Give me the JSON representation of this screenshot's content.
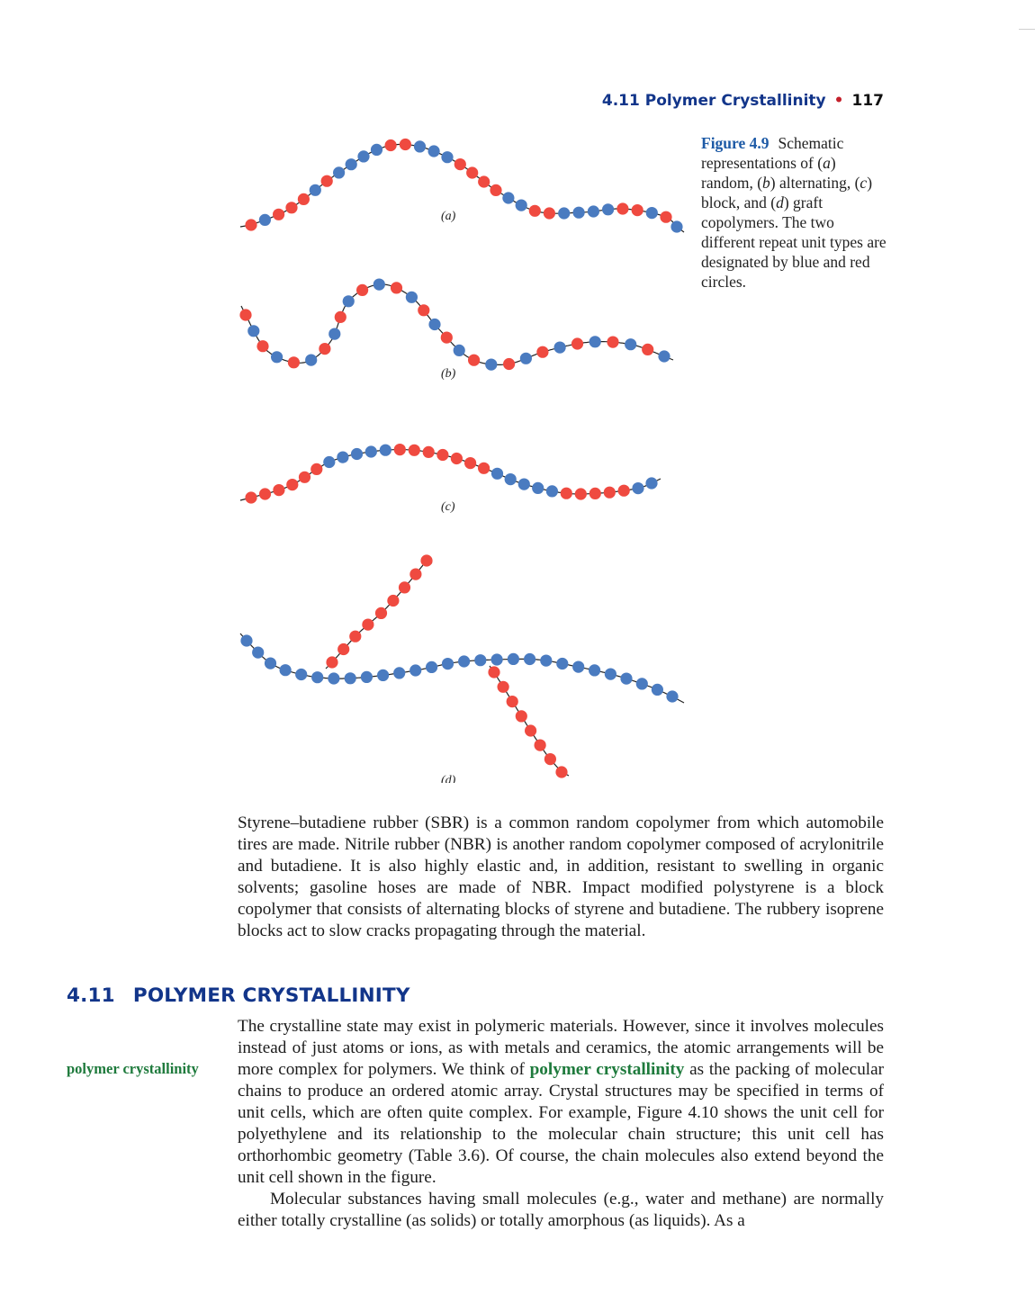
{
  "running_head": {
    "title": "4.11 Polymer Crystallinity",
    "bullet": "•",
    "page_number": "117"
  },
  "figure": {
    "label": "Figure 4.9",
    "caption_parts": [
      "Schematic representations of (",
      "a",
      ") random, (",
      "b",
      ") alternating, (",
      "c",
      ") block, and (",
      "d",
      ") graft copolymers. The two different repeat unit types are designated by blue and red circles."
    ],
    "panel_labels": [
      "(a)",
      "(b)",
      "(c)",
      "(d)"
    ],
    "colors": {
      "blue": "#4a7bc0",
      "red": "#ef4a40",
      "chain": "#222222"
    }
  },
  "body": {
    "para1": "Styrene–butadiene rubber (SBR) is a common random copolymer from which automobile tires are made. Nitrile rubber (NBR) is another random copolymer composed of acrylonitrile and butadiene. It is also highly elastic and, in addition, resistant to swelling in organic solvents; gasoline hoses are made of NBR. Impact modified polystyrene is a block copolymer that consists of alternating blocks of styrene and butadiene. The rubbery isoprene blocks act to slow cracks propagating through the material.",
    "section_number": "4.11",
    "section_title": "POLYMER CRYSTALLINITY",
    "margin_term": "polymer crystallinity",
    "para2_before": "The crystalline state may exist in polymeric materials. However, since it involves molecules instead of just atoms or ions, as with metals and ceramics, the atomic arrangements will be more complex for polymers. We think of",
    "para2_term": "polymer crystallinity",
    "para2_after": "as the packing of molecular chains to produce an ordered atomic array. Crystal structures may be specified in terms of unit cells, which are often quite complex. For example, Figure 4.10 shows the unit cell for polyethylene and its relationship to the molecular chain structure; this unit cell has orthorhombic geometry (Table 3.6). Of course, the chain molecules also extend beyond the unit cell shown in the figure.",
    "para3": "Molecular substances having small molecules (e.g., water and methane) are normally either totally crystalline (as solids) or totally amorphous (as liquids). As a"
  }
}
